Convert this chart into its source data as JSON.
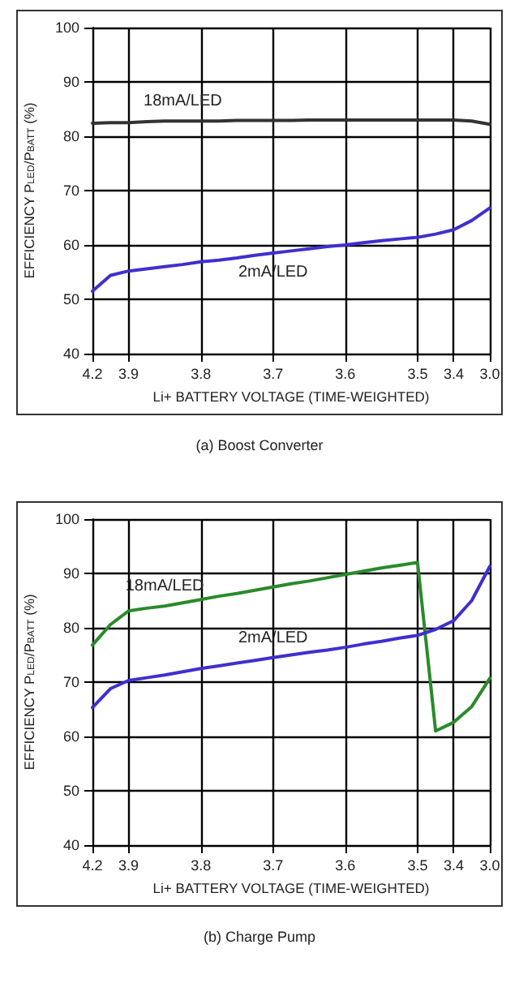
{
  "chart_data": [
    {
      "type": "line",
      "title": "(a) Boost Converter",
      "xlabel": "Li+ BATTERY VOLTAGE (TIME-WEIGHTED)",
      "ylabel": "EFFICIENCY P$_{LED}$/P$_{BATT}$ (%)",
      "categories": [
        "4.2",
        null,
        "3.9",
        null,
        null,
        null,
        "3.8",
        null,
        null,
        null,
        "3.7",
        null,
        null,
        null,
        "3.6",
        null,
        null,
        null,
        "3.5",
        null,
        "3.4",
        null,
        "3.0"
      ],
      "ylim": [
        40,
        100
      ],
      "yticks": [
        40,
        50,
        60,
        70,
        80,
        90,
        100
      ],
      "grid": true,
      "legend": false,
      "marker": "none",
      "line_style": "solid",
      "series": [
        {
          "name": "18mA/LED",
          "color": "#333333",
          "values": [
            82.4,
            82.5,
            82.5,
            82.7,
            82.8,
            82.8,
            82.8,
            82.8,
            82.9,
            82.9,
            82.9,
            82.9,
            83.0,
            83.0,
            83.0,
            83.0,
            83.0,
            83.0,
            83.0,
            83.0,
            83.0,
            82.8,
            82.2
          ]
        },
        {
          "name": "2mA/LED",
          "color": "#3f2fcf",
          "values": [
            51.5,
            54.4,
            55.2,
            55.6,
            56.0,
            56.4,
            56.9,
            57.2,
            57.6,
            58.1,
            58.5,
            58.9,
            59.3,
            59.7,
            60.0,
            60.4,
            60.8,
            61.1,
            61.4,
            62.0,
            62.8,
            64.5,
            66.8
          ]
        }
      ]
    },
    {
      "type": "line",
      "title": "(b) Charge Pump",
      "xlabel": "Li+ BATTERY VOLTAGE (TIME-WEIGHTED)",
      "ylabel": "EFFICIENCY P$_{LED}$/P$_{BATT}$ (%)",
      "categories": [
        "4.2",
        null,
        "3.9",
        null,
        null,
        null,
        "3.8",
        null,
        null,
        null,
        "3.7",
        null,
        null,
        null,
        "3.6",
        null,
        null,
        null,
        "3.5",
        null,
        "3.4",
        null,
        "3.0"
      ],
      "ylim": [
        40,
        100
      ],
      "yticks": [
        40,
        50,
        60,
        70,
        80,
        90,
        100
      ],
      "grid": true,
      "legend": false,
      "marker": "none",
      "line_style": "solid",
      "series": [
        {
          "name": "18mA/LED",
          "color": "#2a8a2a",
          "values": [
            76.8,
            80.6,
            83.1,
            83.6,
            84.0,
            84.6,
            85.2,
            85.8,
            86.3,
            86.9,
            87.5,
            88.1,
            88.6,
            89.2,
            89.8,
            90.4,
            91.0,
            91.5,
            92.0,
            61.0,
            62.6,
            65.5,
            70.7
          ]
        },
        {
          "name": "2mA/LED",
          "color": "#3f2fcf",
          "values": [
            65.3,
            68.8,
            70.3,
            70.8,
            71.3,
            71.9,
            72.5,
            73.0,
            73.5,
            74.0,
            74.5,
            75.0,
            75.5,
            75.9,
            76.4,
            77.0,
            77.5,
            78.1,
            78.6,
            79.7,
            81.3,
            85.0,
            91.3
          ]
        }
      ]
    }
  ]
}
